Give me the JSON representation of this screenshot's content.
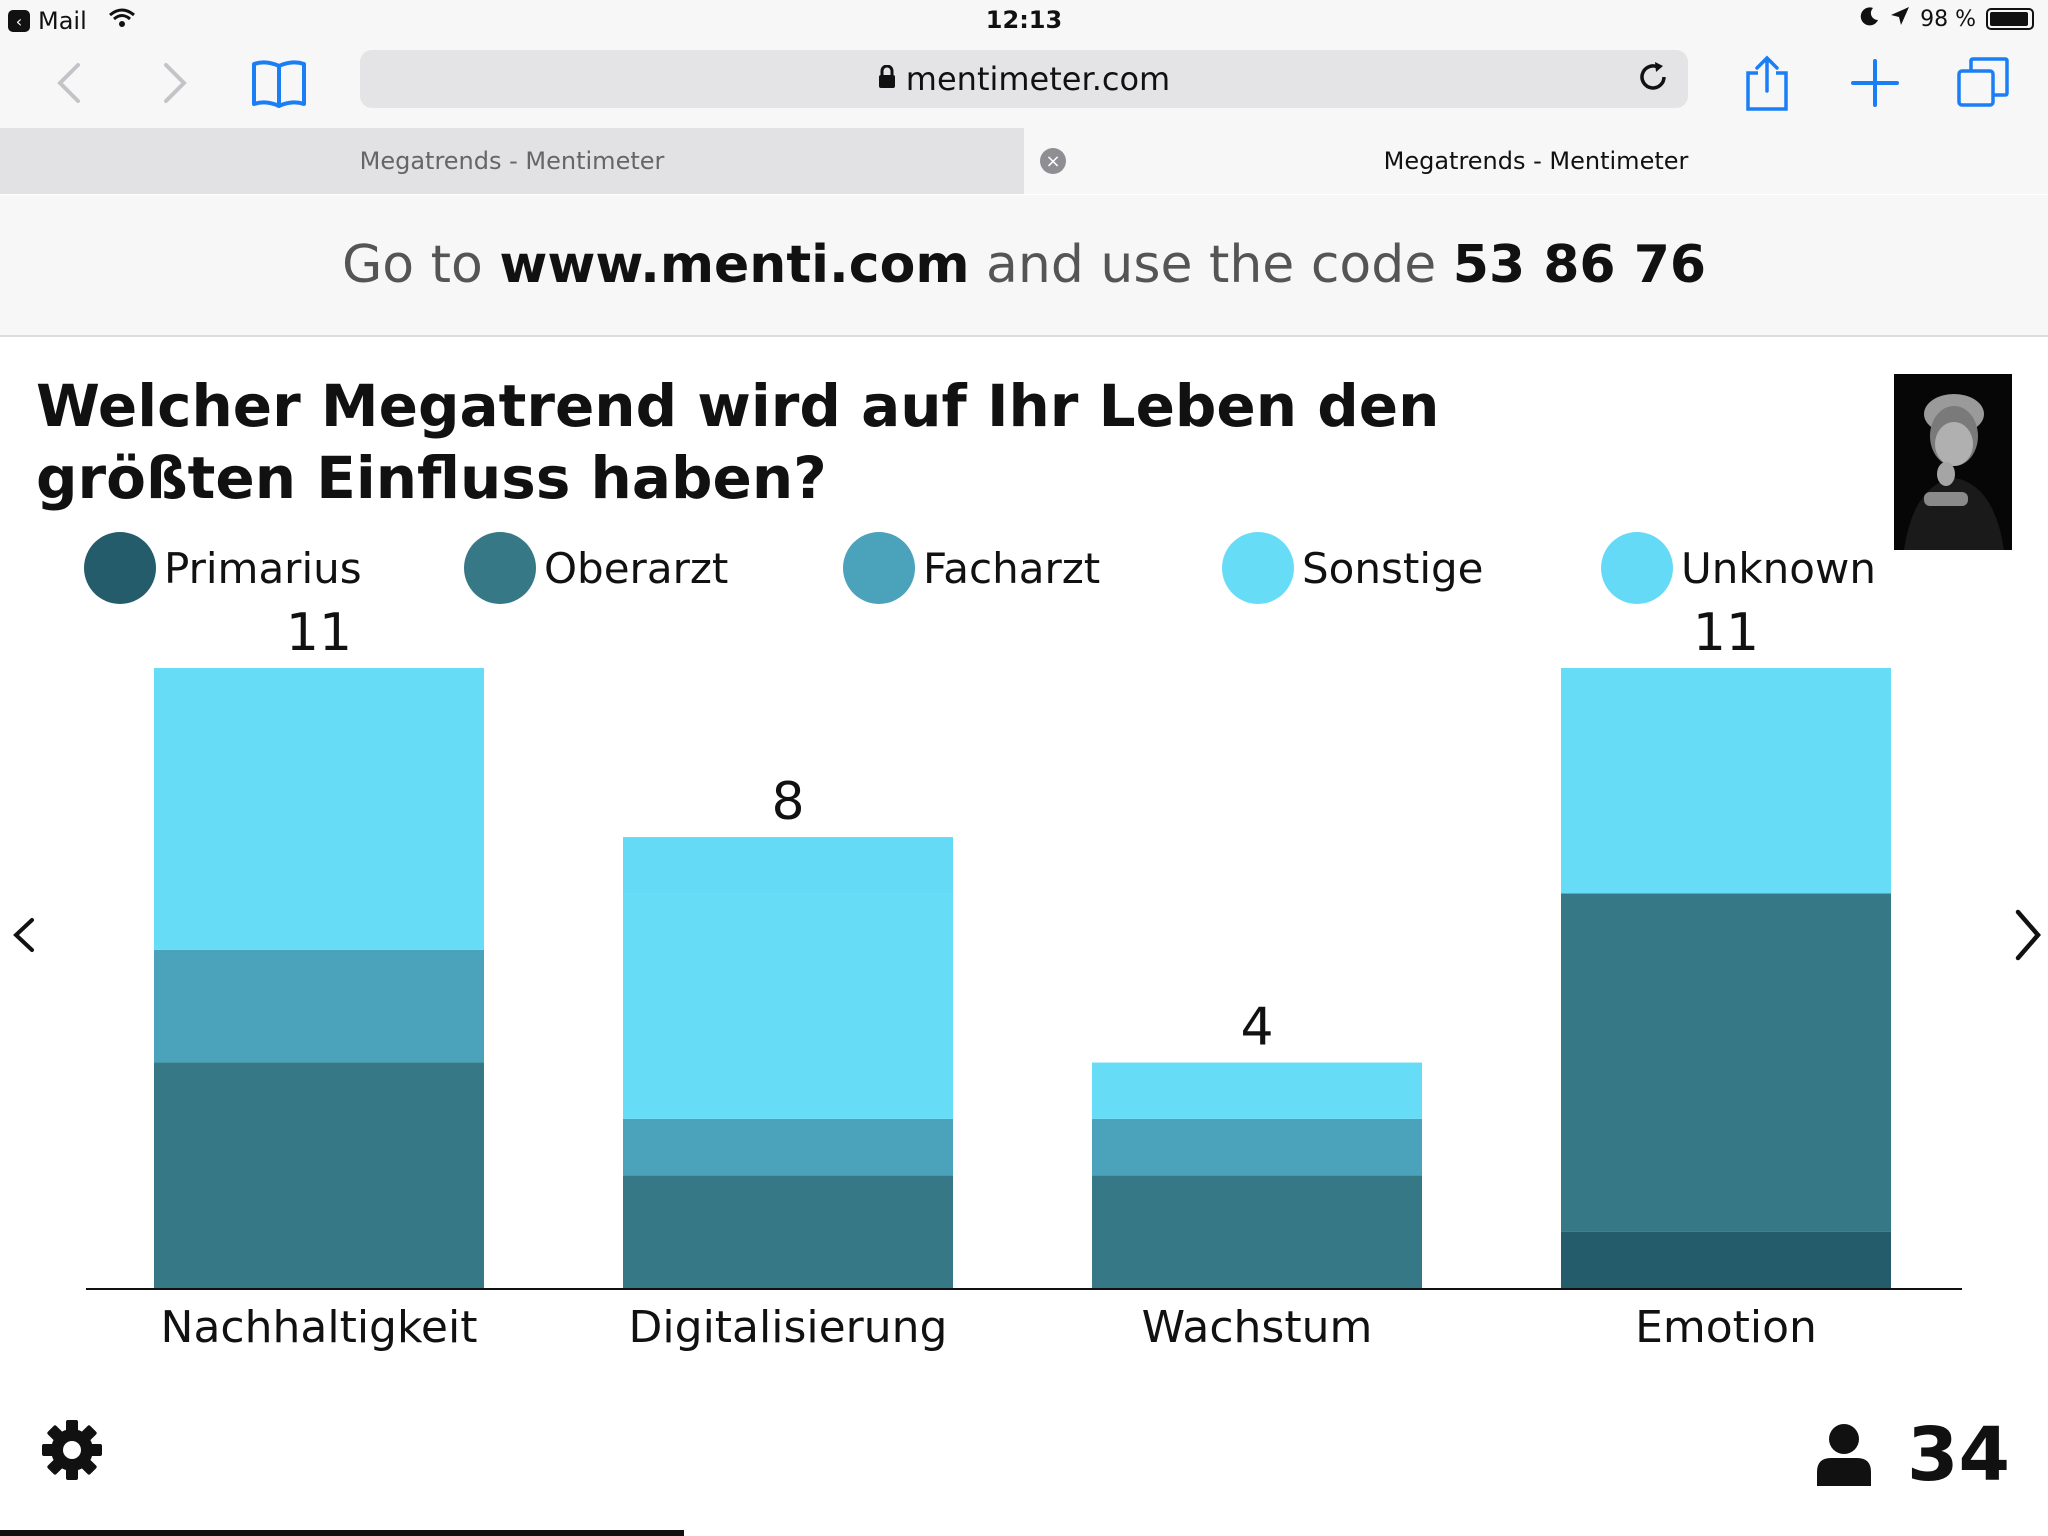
{
  "status_bar": {
    "back_app": "Mail",
    "time": "12:13",
    "battery": "98 %"
  },
  "browser": {
    "url": "mentimeter.com",
    "tabs": [
      {
        "title": "Megatrends - Mentimeter",
        "active": false
      },
      {
        "title": "Megatrends - Mentimeter",
        "active": true
      }
    ]
  },
  "instructions": {
    "prefix": "Go to",
    "site": "www.menti.com",
    "middle": "and use the code",
    "code": "53 86 76"
  },
  "question": "Welcher Megatrend wird auf Ihr Leben den größten Einfluss haben?",
  "colors": {
    "Primarius": "#255c6b",
    "Oberarzt": "#377887",
    "Facharzt": "#4aa2bb",
    "Sonstige": "#67dcf7",
    "Unknown": "#65daf6"
  },
  "chart_data": {
    "type": "bar",
    "stacked": true,
    "categories": [
      "Nachhaltigkeit",
      "Digitalisierung",
      "Wachstum",
      "Emotion"
    ],
    "totals": [
      11,
      8,
      4,
      11
    ],
    "series": [
      {
        "name": "Primarius",
        "values": [
          0,
          0,
          0,
          1
        ]
      },
      {
        "name": "Oberarzt",
        "values": [
          4,
          2,
          2,
          6
        ]
      },
      {
        "name": "Facharzt",
        "values": [
          2,
          1,
          1,
          0
        ]
      },
      {
        "name": "Sonstige",
        "values": [
          5,
          4,
          1,
          4
        ]
      },
      {
        "name": "Unknown",
        "values": [
          0,
          1,
          0,
          0
        ]
      }
    ],
    "legend": "top",
    "ylim": [
      0,
      11
    ],
    "grid": false
  },
  "footer": {
    "participant_count": "34"
  }
}
